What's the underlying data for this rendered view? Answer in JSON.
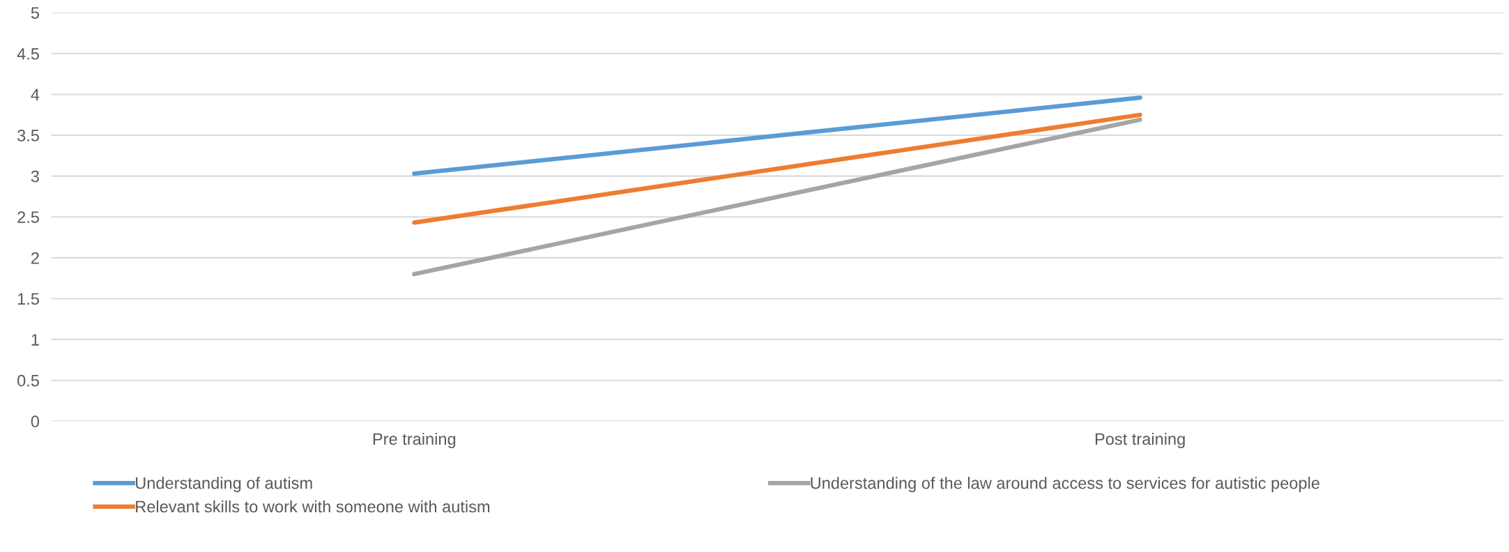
{
  "chart_data": {
    "type": "line",
    "categories": [
      "Pre training",
      "Post training"
    ],
    "series": [
      {
        "name": "Understanding of autism",
        "color": "#5b9bd5",
        "values": [
          3.03,
          3.96
        ]
      },
      {
        "name": "Relevant skills to work with someone with autism",
        "color": "#ed7d31",
        "values": [
          2.43,
          3.75
        ]
      },
      {
        "name": "Understanding of the law around access to services for autistic people",
        "color": "#a5a5a5",
        "values": [
          1.8,
          3.69
        ]
      }
    ],
    "ylim": [
      0,
      5
    ],
    "yticks": [
      0,
      0.5,
      1,
      1.5,
      2,
      2.5,
      3,
      3.5,
      4,
      4.5,
      5
    ],
    "grid": "y",
    "legend": "bottom",
    "marker": "none",
    "line_style": "solid"
  }
}
